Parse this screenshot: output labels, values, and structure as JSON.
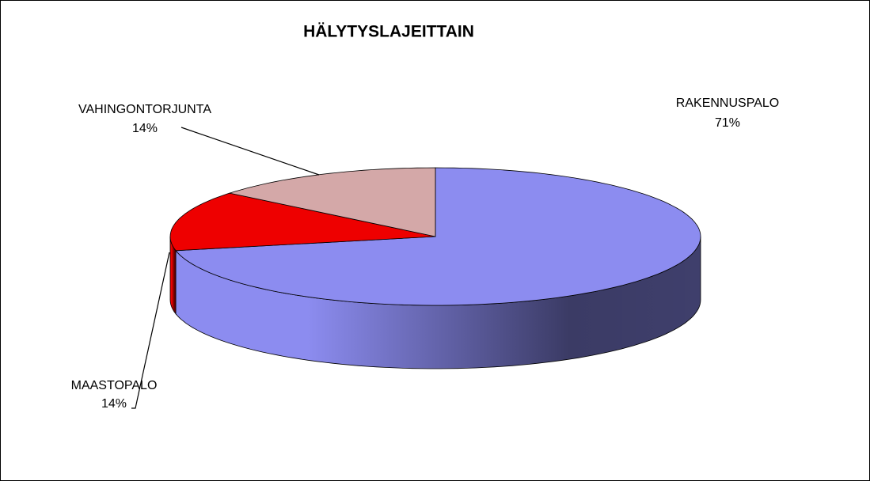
{
  "chart_data": {
    "type": "pie3d",
    "title": "HÄLYTYSLAJEITTAIN",
    "categories": [
      "RAKENNUSPALO",
      "MAASTOPALO",
      "VAHINGONTORJUNTA"
    ],
    "values": [
      71,
      14,
      14
    ],
    "value_labels": [
      "71%",
      "14%",
      "14%"
    ],
    "colors": [
      "#8c8cf0",
      "#ee0000",
      "#d4a8a8"
    ]
  }
}
